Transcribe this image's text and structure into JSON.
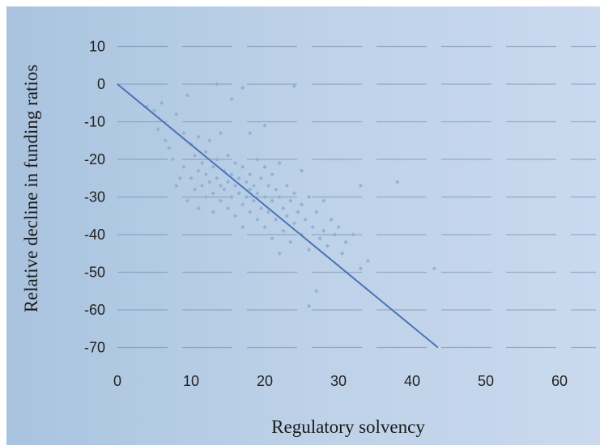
{
  "chart_data": {
    "type": "scatter",
    "xlabel": "Regulatory solvency",
    "ylabel": "Relative decline in funding ratios",
    "xlim": [
      0,
      65
    ],
    "ylim": [
      -70,
      10
    ],
    "x_ticks": [
      0,
      10,
      20,
      30,
      40,
      50,
      60
    ],
    "y_ticks": [
      10,
      0,
      -10,
      -20,
      -30,
      -40,
      -50,
      -60,
      -70
    ],
    "grid": true,
    "legend": "none",
    "colors": {
      "points": "#8fadd4",
      "line": "#4a73b5",
      "grid": "#6f86a6"
    },
    "trend_line": {
      "x": [
        0,
        43.5
      ],
      "y": [
        0,
        -70
      ]
    },
    "points": [
      [
        4,
        -6
      ],
      [
        5,
        -7
      ],
      [
        5.5,
        -12
      ],
      [
        6,
        -5
      ],
      [
        6.5,
        -15
      ],
      [
        7,
        -17
      ],
      [
        7.5,
        -20
      ],
      [
        8,
        -27
      ],
      [
        8,
        -8
      ],
      [
        8.5,
        -25
      ],
      [
        9,
        -13
      ],
      [
        9,
        -22
      ],
      [
        9.5,
        -3
      ],
      [
        9.5,
        -31
      ],
      [
        10,
        -16
      ],
      [
        10,
        -25
      ],
      [
        10.5,
        -19
      ],
      [
        10.5,
        -28
      ],
      [
        11,
        -14
      ],
      [
        11,
        -23
      ],
      [
        11,
        -33
      ],
      [
        11.5,
        -21
      ],
      [
        11.5,
        -27
      ],
      [
        12,
        -18
      ],
      [
        12,
        -24
      ],
      [
        12,
        -30
      ],
      [
        12.5,
        -15
      ],
      [
        12.5,
        -26
      ],
      [
        13,
        -22
      ],
      [
        13,
        -29
      ],
      [
        13,
        -34
      ],
      [
        13.5,
        0
      ],
      [
        13.5,
        -20
      ],
      [
        13.5,
        -25
      ],
      [
        14,
        -13
      ],
      [
        14,
        -27
      ],
      [
        14,
        -31
      ],
      [
        14.5,
        -23
      ],
      [
        14.5,
        -28
      ],
      [
        15,
        -19
      ],
      [
        15,
        -26
      ],
      [
        15,
        -33
      ],
      [
        15.5,
        -4
      ],
      [
        15.5,
        -24
      ],
      [
        15.5,
        -30
      ],
      [
        16,
        -21
      ],
      [
        16,
        -27
      ],
      [
        16,
        -35
      ],
      [
        16.5,
        -25
      ],
      [
        16.5,
        -29
      ],
      [
        17,
        -1
      ],
      [
        17,
        -22
      ],
      [
        17,
        -32
      ],
      [
        17,
        -38
      ],
      [
        17.5,
        -26
      ],
      [
        17.5,
        -30
      ],
      [
        18,
        -13
      ],
      [
        18,
        -24
      ],
      [
        18,
        -28
      ],
      [
        18,
        -34
      ],
      [
        18.5,
        -27
      ],
      [
        18.5,
        -31
      ],
      [
        19,
        -20
      ],
      [
        19,
        -29
      ],
      [
        19,
        -36
      ],
      [
        19.5,
        -25
      ],
      [
        19.5,
        -33
      ],
      [
        20,
        -11
      ],
      [
        20,
        -22
      ],
      [
        20,
        -30
      ],
      [
        20,
        -38
      ],
      [
        20.5,
        -27
      ],
      [
        20.5,
        -34
      ],
      [
        21,
        -24
      ],
      [
        21,
        -31
      ],
      [
        21,
        -41
      ],
      [
        21.5,
        -28
      ],
      [
        21.5,
        -36
      ],
      [
        22,
        -21
      ],
      [
        22,
        -30
      ],
      [
        22,
        -45
      ],
      [
        22.5,
        -33
      ],
      [
        22.5,
        -39
      ],
      [
        23,
        -27
      ],
      [
        23,
        -35
      ],
      [
        23.5,
        -31
      ],
      [
        23.5,
        -42
      ],
      [
        24,
        -0.5
      ],
      [
        24,
        -29
      ],
      [
        24,
        -37
      ],
      [
        24.5,
        -34
      ],
      [
        25,
        -23
      ],
      [
        25,
        -32
      ],
      [
        25,
        -40
      ],
      [
        25.5,
        -36
      ],
      [
        26,
        -30
      ],
      [
        26,
        -44
      ],
      [
        26,
        -59
      ],
      [
        26.5,
        -38
      ],
      [
        27,
        -34
      ],
      [
        27,
        -55
      ],
      [
        27.5,
        -41
      ],
      [
        28,
        -31
      ],
      [
        28,
        -39
      ],
      [
        28.5,
        -43
      ],
      [
        29,
        -36
      ],
      [
        29.5,
        -40
      ],
      [
        30,
        -38
      ],
      [
        30.5,
        -45
      ],
      [
        31,
        -42
      ],
      [
        32,
        -40
      ],
      [
        33,
        -49
      ],
      [
        33,
        -27
      ],
      [
        34,
        -47
      ],
      [
        38,
        -26
      ],
      [
        43,
        -49
      ]
    ]
  }
}
